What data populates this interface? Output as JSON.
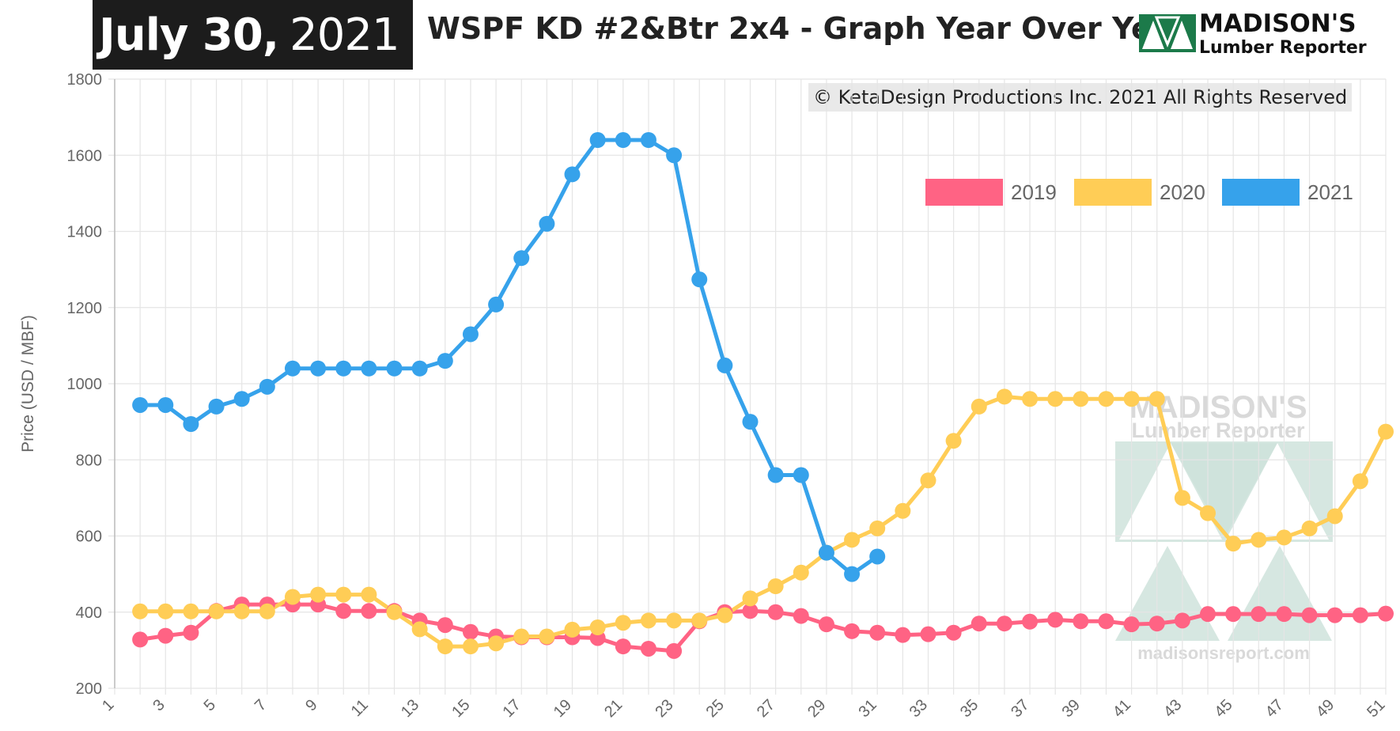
{
  "header": {
    "date_bold": "July 30,",
    "date_year": "2021",
    "title": "WSPF KD #2&Btr 2x4 - Graph Year Over Year"
  },
  "logo": {
    "name": "MADISON'S",
    "sub": "Lumber Reporter"
  },
  "copyright": "© KetaDesign Productions Inc. 2021 All Rights Reserved",
  "watermark": {
    "name": "MADISON'S",
    "sub": "Lumber Reporter",
    "url": "madisonsreport.com"
  },
  "colors": {
    "2019": "#ff6384",
    "2020": "#ffcd56",
    "2021": "#36a2eb",
    "grid": "#e5e5e5",
    "watermark": "#cfe3dc"
  },
  "chart_data": {
    "type": "line",
    "title": "WSPF KD #2&Btr 2x4 - Graph Year Over Year",
    "xlabel": "",
    "ylabel": "Price (USD / MBF)",
    "xlim": [
      1,
      51
    ],
    "ylim": [
      200,
      1800
    ],
    "yticks": [
      200,
      400,
      600,
      800,
      1000,
      1200,
      1400,
      1600,
      1800
    ],
    "xticks": [
      1,
      3,
      5,
      7,
      9,
      11,
      13,
      15,
      17,
      19,
      21,
      23,
      25,
      27,
      29,
      31,
      33,
      35,
      37,
      39,
      41,
      43,
      45,
      47,
      49,
      51
    ],
    "grid": true,
    "legend_position": "top-right",
    "series": [
      {
        "name": "2019",
        "color": "#ff6384",
        "x": [
          2,
          3,
          4,
          5,
          6,
          7,
          8,
          9,
          10,
          11,
          12,
          13,
          14,
          15,
          16,
          17,
          18,
          19,
          20,
          21,
          22,
          23,
          24,
          25,
          26,
          27,
          28,
          29,
          30,
          31,
          32,
          33,
          34,
          35,
          36,
          37,
          38,
          39,
          40,
          41,
          42,
          43,
          44,
          45,
          46,
          47,
          48,
          49,
          50,
          51
        ],
        "values": [
          328,
          338,
          346,
          403,
          420,
          420,
          420,
          420,
          403,
          403,
          403,
          378,
          366,
          348,
          336,
          334,
          334,
          334,
          332,
          310,
          304,
          298,
          376,
          400,
          403,
          400,
          390,
          368,
          350,
          346,
          340,
          342,
          346,
          370,
          370,
          375,
          380,
          376,
          376,
          368,
          370,
          378,
          395,
          395,
          395,
          395,
          392,
          392,
          392,
          396
        ]
      },
      {
        "name": "2020",
        "color": "#ffcd56",
        "x": [
          2,
          3,
          4,
          5,
          6,
          7,
          8,
          9,
          10,
          11,
          12,
          13,
          14,
          15,
          16,
          17,
          18,
          19,
          20,
          21,
          22,
          23,
          24,
          25,
          26,
          27,
          28,
          29,
          30,
          31,
          32,
          33,
          34,
          35,
          36,
          37,
          38,
          39,
          40,
          41,
          42,
          43,
          44,
          45,
          46,
          47,
          48,
          49,
          50,
          51
        ],
        "values": [
          402,
          402,
          402,
          402,
          402,
          402,
          440,
          446,
          446,
          446,
          400,
          355,
          310,
          310,
          318,
          336,
          336,
          354,
          360,
          372,
          378,
          378,
          378,
          392,
          436,
          468,
          504,
          556,
          590,
          620,
          666,
          746,
          850,
          940,
          966,
          960,
          960,
          960,
          960,
          960,
          960,
          700,
          660,
          580,
          590,
          596,
          620,
          652,
          744,
          874
        ]
      },
      {
        "name": "2021",
        "color": "#36a2eb",
        "x": [
          2,
          3,
          4,
          5,
          6,
          7,
          8,
          9,
          10,
          11,
          12,
          13,
          14,
          15,
          16,
          17,
          18,
          19,
          20,
          21,
          22,
          23,
          24,
          25,
          26,
          27,
          28,
          29,
          30,
          31
        ],
        "values": [
          944,
          944,
          894,
          940,
          960,
          992,
          1040,
          1040,
          1040,
          1040,
          1040,
          1040,
          1060,
          1130,
          1208,
          1330,
          1420,
          1550,
          1640,
          1640,
          1640,
          1600,
          1274,
          1048,
          900,
          760,
          760,
          556,
          500,
          546
        ]
      }
    ]
  }
}
